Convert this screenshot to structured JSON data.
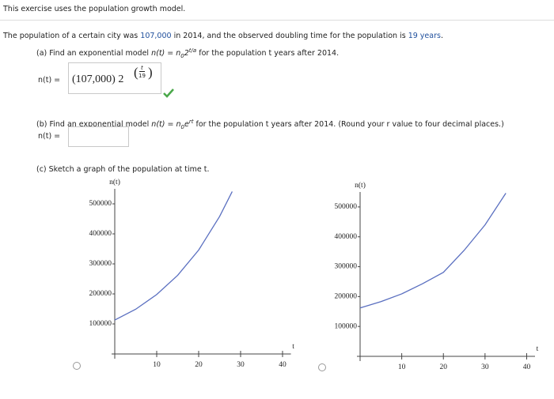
{
  "header": "This exercise uses the population growth model.",
  "problem": {
    "text1": "The population of a certain city was",
    "population": "107,000",
    "text2": "in 2014, and the observed doubling time for the population is",
    "doubling": "19 years",
    "text3": "."
  },
  "part_a": {
    "label": "(a) Find an exponential model",
    "formula": [
      "n(t) = n",
      "0",
      "2",
      "t/a"
    ],
    "suffix": "for the population t years after 2014.",
    "answer_label": "n(t) =",
    "answer": {
      "coefficient": "(107,000) 2",
      "exp_num": "t",
      "exp_den": "19"
    }
  },
  "part_b": {
    "label": "(b) Find an exponential model",
    "formula": [
      "n(t) = n",
      "0",
      "e",
      "rt"
    ],
    "suffix": "for the population t years after 2014. (Round your r value to four decimal places.)",
    "answer_label": "n(t) ="
  },
  "part_c": {
    "label": "(c) Sketch a graph of the population at time t."
  },
  "chart_data": [
    {
      "type": "line",
      "y_label": "n(t)",
      "x_label": "t",
      "x": [
        0,
        5,
        10,
        15,
        20,
        25,
        28
      ],
      "values": [
        113000,
        149000,
        198000,
        262000,
        346000,
        458000,
        541000
      ],
      "color": "#5a6fc0",
      "xlim": [
        0,
        42
      ],
      "ylim": [
        0,
        550000
      ],
      "xticks": [
        10,
        20,
        30,
        40
      ],
      "yticks": [
        100000,
        200000,
        300000,
        400000,
        500000
      ]
    },
    {
      "type": "line",
      "y_label": "n(t)",
      "x_label": "t",
      "x": [
        0,
        5,
        10,
        15,
        20,
        25,
        30,
        35
      ],
      "values": [
        162000,
        183000,
        209000,
        243000,
        281000,
        355000,
        440000,
        546000
      ],
      "color": "#5a6fc0",
      "xlim": [
        0,
        42
      ],
      "ylim": [
        0,
        550000
      ],
      "xticks": [
        10,
        20,
        30,
        40
      ],
      "yticks": [
        100000,
        200000,
        300000,
        400000,
        500000
      ]
    }
  ]
}
